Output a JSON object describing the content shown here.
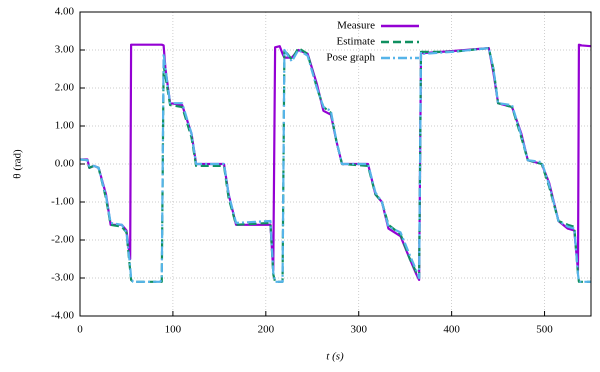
{
  "chart_data": {
    "type": "line",
    "xlabel": "t (s)",
    "ylabel": "θ (rad)",
    "x": [
      0,
      8,
      10,
      15,
      20,
      28,
      33,
      45,
      50,
      54,
      55,
      57,
      86,
      88,
      90,
      92,
      97,
      110,
      120,
      125,
      155,
      160,
      168,
      205,
      208,
      210,
      215,
      218,
      220,
      228,
      235,
      245,
      255,
      262,
      270,
      276,
      282,
      310,
      318,
      325,
      332,
      345,
      355,
      362,
      365,
      367,
      370,
      400,
      440,
      445,
      450,
      465,
      475,
      482,
      497,
      505,
      515,
      525,
      532,
      536,
      537,
      540,
      550
    ],
    "series": [
      {
        "name": "Measure",
        "color": "#9400d3",
        "style": "solid",
        "values": [
          0.12,
          0.12,
          -0.1,
          -0.05,
          -0.1,
          -0.8,
          -1.6,
          -1.6,
          -1.75,
          -2.5,
          3.14,
          3.14,
          3.14,
          3.14,
          3.12,
          2.5,
          1.6,
          1.55,
          0.8,
          0,
          0,
          -0.8,
          -1.6,
          -1.6,
          -2.8,
          3.07,
          3.1,
          2.9,
          2.8,
          2.8,
          3,
          2.9,
          2.1,
          1.4,
          1.3,
          0.6,
          0,
          0,
          -0.8,
          -1,
          -1.7,
          -1.9,
          -2.5,
          -2.9,
          -3.05,
          2.92,
          2.92,
          2.97,
          3.05,
          2.4,
          1.6,
          1.5,
          0.8,
          0.1,
          0,
          -0.5,
          -1.5,
          -1.7,
          -1.75,
          -2.8,
          3.14,
          3.12,
          3.1
        ]
      },
      {
        "name": "Estimate",
        "color": "#109060",
        "style": "dashed",
        "values": [
          0.12,
          0.1,
          -0.1,
          -0.05,
          -0.1,
          -0.9,
          -1.6,
          -1.65,
          -1.8,
          -2.8,
          -3.05,
          -3.1,
          -3.1,
          -3.1,
          2.6,
          2.3,
          1.55,
          1.5,
          0.7,
          -0.05,
          -0.05,
          -0.9,
          -1.6,
          -1.55,
          -2.9,
          -3.1,
          -3.1,
          -3.1,
          3,
          2.75,
          3.05,
          2.9,
          2,
          1.5,
          1.35,
          0.6,
          0,
          -0.05,
          -0.8,
          -1,
          -1.6,
          -1.85,
          -2.5,
          -2.85,
          -3,
          2.95,
          2.95,
          2.95,
          3.05,
          2.5,
          1.6,
          1.5,
          0.7,
          0.1,
          0,
          -0.6,
          -1.5,
          -1.6,
          -1.65,
          -2.9,
          -3.1,
          -3.1,
          -3.1
        ]
      },
      {
        "name": "Pose graph",
        "color": "#56b4e9",
        "style": "dashdot",
        "values": [
          0.12,
          0.1,
          -0.05,
          -0.05,
          -0.1,
          -0.85,
          -1.55,
          -1.6,
          -1.8,
          -2.7,
          -3,
          -3.1,
          -3.1,
          -3.05,
          2.9,
          2.5,
          1.6,
          1.6,
          0.8,
          0,
          0,
          -0.8,
          -1.55,
          -1.5,
          -2.85,
          -3.1,
          -3.1,
          -3.1,
          3,
          2.7,
          3,
          2.85,
          2,
          1.5,
          1.4,
          0.6,
          0,
          0,
          -0.75,
          -1,
          -1.65,
          -1.8,
          -2.4,
          -2.8,
          -3,
          2.95,
          2.9,
          2.95,
          3.05,
          2.5,
          1.6,
          1.55,
          0.75,
          0.1,
          0.05,
          -0.55,
          -1.5,
          -1.65,
          -1.7,
          -2.9,
          -3.1,
          -3.1,
          -3.1
        ]
      }
    ],
    "xlim": [
      0,
      550
    ],
    "xticks": [
      0,
      100,
      200,
      300,
      400,
      500
    ],
    "ylim": [
      -4,
      4
    ],
    "yticks": [
      {
        "value": -4,
        "label": "-4.00"
      },
      {
        "value": -3,
        "label": "-3.00"
      },
      {
        "value": -2,
        "label": "-2.00"
      },
      {
        "value": -1,
        "label": "-1.00"
      },
      {
        "value": 0,
        "label": "0.00"
      },
      {
        "value": 1,
        "label": "1.00"
      },
      {
        "value": 2,
        "label": "2.00"
      },
      {
        "value": 3,
        "label": "3.00"
      },
      {
        "value": 4,
        "label": "4.00"
      }
    ],
    "grid": true,
    "legend": "top-center"
  }
}
